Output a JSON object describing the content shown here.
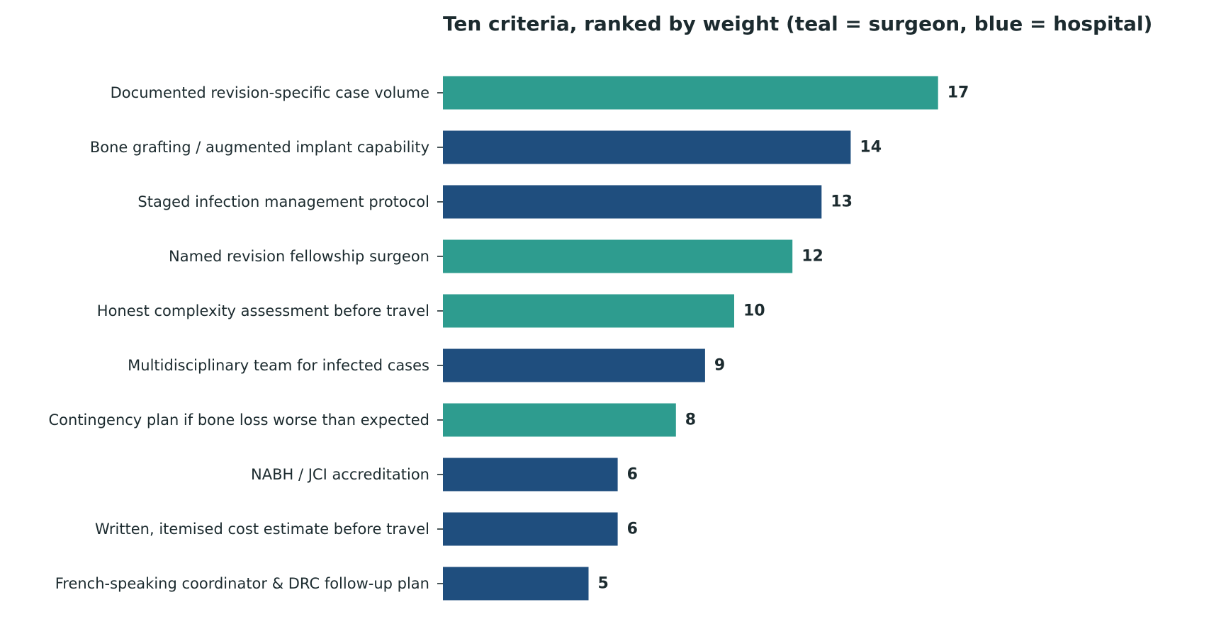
{
  "chart_data": {
    "type": "bar",
    "orientation": "horizontal",
    "title": "Ten criteria, ranked by weight (teal = surgeon, blue = hospital)",
    "xlabel": "",
    "ylabel": "",
    "xlim": [
      0,
      17
    ],
    "grid": false,
    "legend": "none",
    "categories": [
      "Documented revision-specific case volume",
      "Bone grafting / augmented implant capability",
      "Staged infection management protocol",
      "Named revision fellowship surgeon",
      "Honest complexity assessment before travel",
      "Multidisciplinary team for infected cases",
      "Contingency plan if bone loss worse than expected",
      "NABH / JCI accreditation",
      "Written, itemised cost estimate before travel",
      "French-speaking coordinator & DRC follow-up plan"
    ],
    "values": [
      17,
      14,
      13,
      12,
      10,
      9,
      8,
      6,
      6,
      5
    ],
    "value_labels": [
      "17",
      "14",
      "13",
      "12",
      "10",
      "9",
      "8",
      "6",
      "6",
      "5"
    ],
    "groups": [
      "surgeon",
      "hospital",
      "hospital",
      "surgeon",
      "surgeon",
      "hospital",
      "surgeon",
      "hospital",
      "hospital",
      "hospital"
    ]
  },
  "colors": {
    "surgeon": "#2e9c8f",
    "hospital": "#1f4e7e",
    "text": "#1c2b2f",
    "background": "#ffffff"
  }
}
